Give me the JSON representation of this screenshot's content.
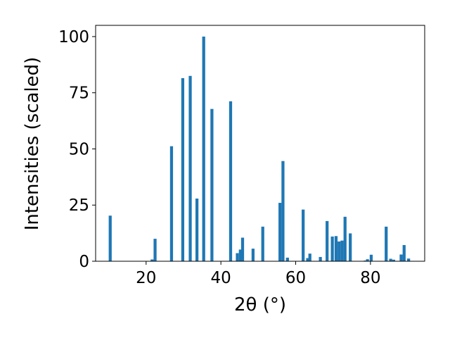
{
  "chart_data": {
    "type": "bar",
    "xlabel": "2θ (°)",
    "ylabel": "Intensities (scaled)",
    "xlim": [
      6.5,
      94.5
    ],
    "ylim": [
      0,
      105
    ],
    "xticks": [
      20,
      40,
      60,
      80
    ],
    "yticks": [
      0,
      25,
      50,
      75,
      100
    ],
    "xtick_labels": [
      "20",
      "40",
      "60",
      "80"
    ],
    "ytick_labels": [
      "0",
      "25",
      "50",
      "75",
      "100"
    ],
    "grid": false,
    "legend": "none",
    "bar_color": "#1f77b4",
    "bar_width": 0.8,
    "x": [
      10.4,
      21.6,
      22.4,
      26.8,
      29.8,
      31.8,
      33.6,
      35.4,
      37.6,
      42.6,
      44.4,
      45.2,
      45.8,
      48.6,
      51.2,
      55.8,
      56.6,
      57.8,
      62.0,
      63.2,
      63.8,
      66.6,
      68.4,
      69.8,
      70.8,
      71.6,
      72.4,
      73.2,
      74.6,
      78.6,
      79.2,
      80.2,
      84.2,
      85.4,
      86.2,
      88.2,
      89.0,
      90.2
    ],
    "values": [
      20.3,
      0.8,
      10.0,
      51.2,
      81.5,
      82.5,
      27.9,
      100.0,
      67.8,
      71.2,
      3.6,
      5.2,
      10.5,
      5.6,
      15.4,
      26.0,
      44.6,
      1.6,
      23.0,
      1.4,
      3.4,
      1.9,
      17.9,
      11.0,
      11.2,
      8.8,
      9.2,
      19.8,
      12.4,
      0.3,
      0.9,
      2.9,
      15.4,
      1.1,
      0.7,
      3.0,
      7.2,
      1.2
    ]
  }
}
